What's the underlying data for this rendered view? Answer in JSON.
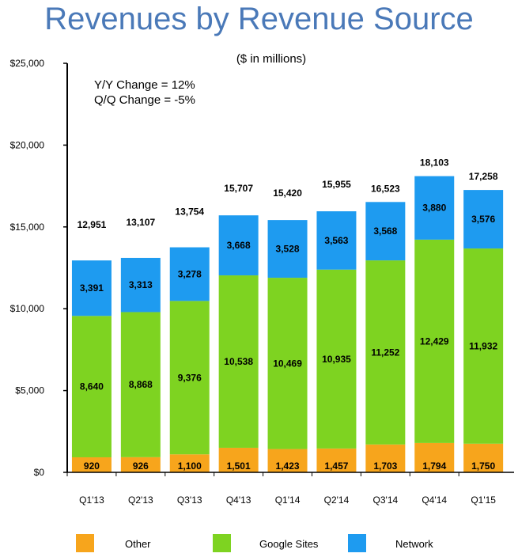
{
  "chart_data": {
    "type": "bar",
    "stacked": true,
    "title": "Revenues by Revenue Source",
    "subtitle": "($ in millions)",
    "annotations": [
      "Y/Y Change = 12%",
      "Q/Q Change = -5%"
    ],
    "categories": [
      "Q1'13",
      "Q2'13",
      "Q3'13",
      "Q4'13",
      "Q1'14",
      "Q2'14",
      "Q3'14",
      "Q4'14",
      "Q1'15"
    ],
    "series": [
      {
        "name": "Other",
        "color": "#f7a51c",
        "values": [
          920,
          926,
          1100,
          1501,
          1423,
          1457,
          1703,
          1794,
          1750
        ],
        "labels": [
          "920",
          "926",
          "1,100",
          "1,501",
          "1,423",
          "1,457",
          "1,703",
          "1,794",
          "1,750"
        ]
      },
      {
        "name": "Google Sites",
        "color": "#7ed321",
        "values": [
          8640,
          8868,
          9376,
          10538,
          10469,
          10935,
          11252,
          12429,
          11932
        ],
        "labels": [
          "8,640",
          "8,868",
          "9,376",
          "10,538",
          "10,469",
          "10,935",
          "11,252",
          "12,429",
          "11,932"
        ]
      },
      {
        "name": "Network",
        "color": "#1e9bf0",
        "values": [
          3391,
          3313,
          3278,
          3668,
          3528,
          3563,
          3568,
          3880,
          3576
        ],
        "labels": [
          "3,391",
          "3,313",
          "3,278",
          "3,668",
          "3,528",
          "3,563",
          "3,568",
          "3,880",
          "3,576"
        ]
      }
    ],
    "totals": [
      12951,
      13107,
      13754,
      15707,
      15420,
      15955,
      16523,
      18103,
      17258
    ],
    "total_labels": [
      "12,951",
      "13,107",
      "13,754",
      "15,707",
      "15,420",
      "15,955",
      "16,523",
      "18,103",
      "17,258"
    ],
    "ylim": [
      0,
      25000
    ],
    "yticks": [
      0,
      5000,
      10000,
      15000,
      20000,
      25000
    ],
    "ytick_labels": [
      "$0",
      "$5,000",
      "$10,000",
      "$15,000",
      "$20,000",
      "$25,000"
    ],
    "xlabel": "",
    "ylabel": "",
    "legend": "bottom",
    "grid": false
  }
}
